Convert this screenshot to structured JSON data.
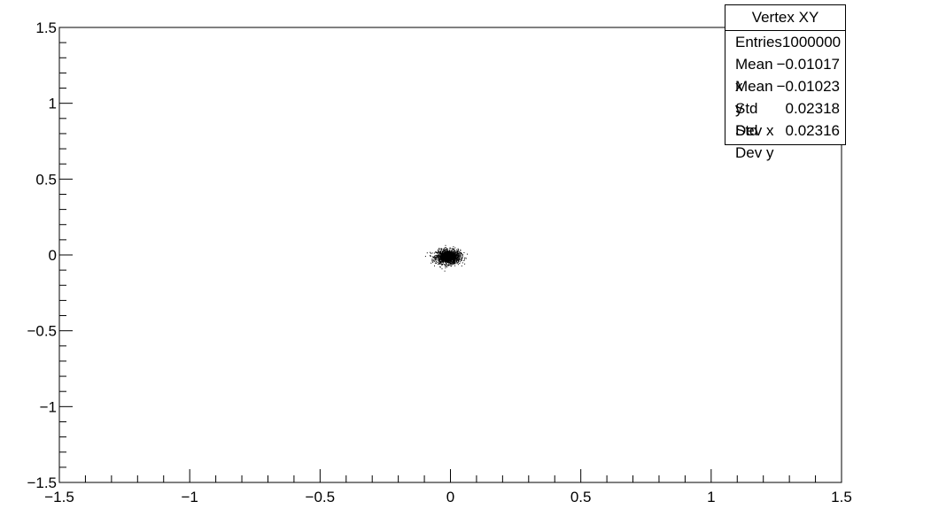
{
  "chart_data": {
    "type": "scatter",
    "title": "",
    "xlabel": "",
    "ylabel": "",
    "xlim": [
      -1.5,
      1.5
    ],
    "ylim": [
      -1.5,
      1.5
    ],
    "x_ticks": [
      "−1.5",
      "−1",
      "−0.5",
      "0",
      "0.5",
      "1",
      "1.5"
    ],
    "y_ticks": [
      "−1.5",
      "−1",
      "−0.5",
      "0",
      "0.5",
      "1",
      "1.5"
    ],
    "grid": false,
    "series": [
      {
        "mean_x": -0.01017,
        "mean_y": -0.01023,
        "std_x": 0.02318,
        "std_y": 0.02316,
        "entries": 1000000,
        "color": "#000000"
      }
    ],
    "stats_box": {
      "title": "Vertex XY",
      "rows": [
        {
          "label": "Entries",
          "value": "1000000"
        },
        {
          "label": "Mean x",
          "value": "−0.01017"
        },
        {
          "label": "Mean y",
          "value": "−0.01023"
        },
        {
          "label": "Std Dev x",
          "value": "0.02318"
        },
        {
          "label": "Std Dev y",
          "value": "0.02316"
        }
      ]
    }
  }
}
